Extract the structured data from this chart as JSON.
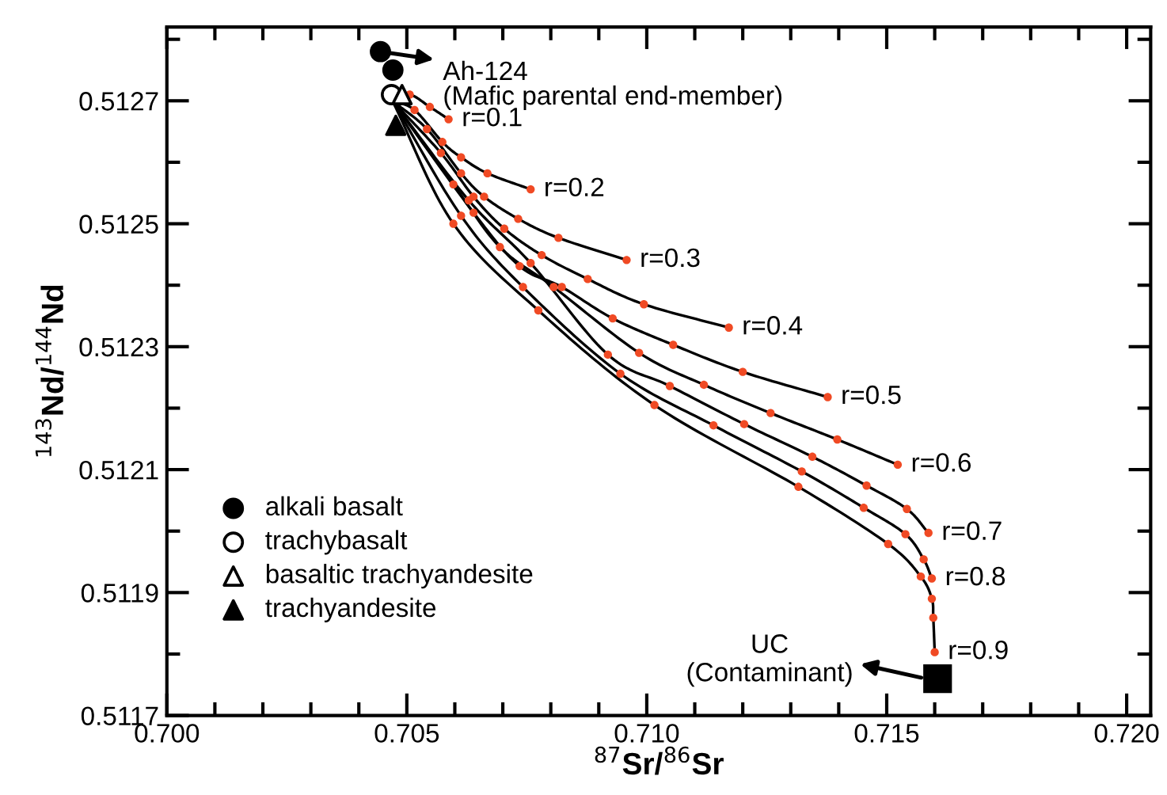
{
  "chart_data": {
    "type": "line",
    "xlabel": "$^{87}$Sr/$^{86}$Sr",
    "ylabel": "$^{143}$Nd/$^{144}$Nd",
    "xlim": [
      0.7,
      0.7205
    ],
    "ylim": [
      0.5117,
      0.51282
    ],
    "xticks": [
      {
        "value": 0.7,
        "label": "0.700"
      },
      {
        "value": 0.701,
        "label": null
      },
      {
        "value": 0.702,
        "label": null
      },
      {
        "value": 0.703,
        "label": null
      },
      {
        "value": 0.704,
        "label": null
      },
      {
        "value": 0.705,
        "label": "0.705"
      },
      {
        "value": 0.706,
        "label": null
      },
      {
        "value": 0.707,
        "label": null
      },
      {
        "value": 0.708,
        "label": null
      },
      {
        "value": 0.709,
        "label": null
      },
      {
        "value": 0.71,
        "label": "0.710"
      },
      {
        "value": 0.711,
        "label": null
      },
      {
        "value": 0.712,
        "label": null
      },
      {
        "value": 0.713,
        "label": null
      },
      {
        "value": 0.714,
        "label": null
      },
      {
        "value": 0.715,
        "label": "0.715"
      },
      {
        "value": 0.716,
        "label": null
      },
      {
        "value": 0.717,
        "label": null
      },
      {
        "value": 0.718,
        "label": null
      },
      {
        "value": 0.719,
        "label": null
      },
      {
        "value": 0.72,
        "label": "0.720"
      }
    ],
    "yticks": [
      0.5117,
      {
        "value": 0.5118,
        "label": null
      },
      0.5119,
      {
        "value": 0.512,
        "label": null
      },
      0.5121,
      {
        "value": 0.5122,
        "label": null
      },
      0.5123,
      {
        "value": 0.5124,
        "label": null
      },
      0.5125,
      {
        "value": 0.5126,
        "label": null
      },
      0.5127,
      {
        "value": 0.5128,
        "label": null
      }
    ],
    "grid": false,
    "legend": "bottom left",
    "series": [
      {
        "color": "#000000",
        "x": [
          0.7047,
          0.70506,
          0.70548,
          0.70587
        ],
        "values": [
          0.5127,
          0.51271,
          0.51269,
          0.51267
        ]
      },
      {
        "color": "#000000",
        "x": [
          0.7047,
          0.70516,
          0.70574,
          0.70613,
          0.70668,
          0.70758
        ],
        "values": [
          0.5127,
          0.512685,
          0.512633,
          0.512608,
          0.512582,
          0.512556
        ]
      },
      {
        "color": "#000000",
        "x": [
          0.7047,
          0.70542,
          0.70613,
          0.70661,
          0.70732,
          0.70816,
          0.70958
        ],
        "values": [
          0.5127,
          0.512654,
          0.512582,
          0.512544,
          0.512508,
          0.512477,
          0.512441
        ]
      },
      {
        "color": "#000000",
        "x": [
          0.7047,
          0.70571,
          0.70639,
          0.70703,
          0.70781,
          0.70877,
          0.70994,
          0.71171
        ],
        "values": [
          0.5127,
          0.512615,
          0.512544,
          0.512492,
          0.512449,
          0.51241,
          0.512369,
          0.512331
        ]
      },
      {
        "color": "#000000",
        "x": [
          0.7047,
          0.70639,
          0.70735,
          0.70823,
          0.70929,
          0.71055,
          0.712,
          0.71377
        ],
        "values": [
          0.5127,
          0.512518,
          0.512431,
          0.512397,
          0.512346,
          0.512303,
          0.512259,
          0.512218
        ]
      },
      {
        "color": "#000000",
        "x": [
          0.7047,
          0.70597,
          0.70694,
          0.70806,
          0.70984,
          0.71119,
          0.71258,
          0.71397,
          0.71523
        ],
        "values": [
          0.5127,
          0.512564,
          0.512462,
          0.512397,
          0.51229,
          0.512238,
          0.512192,
          0.512149,
          0.512108
        ]
      },
      {
        "color": "#000000",
        "x": [
          0.7047,
          0.70629,
          0.70758,
          0.70919,
          0.71048,
          0.71203,
          0.71345,
          0.71458,
          0.71542,
          0.71587
        ],
        "values": [
          0.5127,
          0.512538,
          0.512436,
          0.512287,
          0.512236,
          0.512174,
          0.512121,
          0.512074,
          0.512036,
          0.511997
        ]
      },
      {
        "color": "#000000",
        "x": [
          0.7047,
          0.70613,
          0.70742,
          0.70945,
          0.71139,
          0.71323,
          0.71452,
          0.71539,
          0.71577,
          0.71594
        ],
        "values": [
          0.5127,
          0.512513,
          0.512397,
          0.512256,
          0.512172,
          0.512097,
          0.512038,
          0.511995,
          0.511954,
          0.511923
        ]
      },
      {
        "color": "#000000",
        "x": [
          0.7047,
          0.70597,
          0.70774,
          0.71016,
          0.71316,
          0.71503,
          0.71571,
          0.71594,
          0.71597,
          0.716
        ],
        "values": [
          0.5127,
          0.5125,
          0.512359,
          0.512205,
          0.512072,
          0.511979,
          0.511926,
          0.51189,
          0.511859,
          0.511803
        ]
      },
      {
        "type": "scatter",
        "marker": "circle",
        "color": "#f04a24",
        "x": [
          0.70506,
          0.70548,
          0.70587,
          0.70516,
          0.70574,
          0.70613,
          0.70668,
          0.70758,
          0.70542,
          0.70613,
          0.70661,
          0.70732,
          0.70816,
          0.70958,
          0.70571,
          0.70639,
          0.70703,
          0.70781,
          0.70877,
          0.70994,
          0.71171,
          0.70639,
          0.70735,
          0.70823,
          0.70929,
          0.71055,
          0.712,
          0.71377,
          0.70597,
          0.70694,
          0.70806,
          0.70984,
          0.71119,
          0.71258,
          0.71397,
          0.71523,
          0.70629,
          0.70758,
          0.70919,
          0.71048,
          0.71203,
          0.71345,
          0.71458,
          0.71542,
          0.71587,
          0.70613,
          0.70742,
          0.70945,
          0.71139,
          0.71323,
          0.71452,
          0.71539,
          0.71577,
          0.71594,
          0.70597,
          0.70774,
          0.71016,
          0.71316,
          0.71503,
          0.71571,
          0.71594,
          0.71597,
          0.716
        ],
        "values": [
          0.51271,
          0.51269,
          0.51267,
          0.512685,
          0.512633,
          0.512608,
          0.512582,
          0.512556,
          0.512654,
          0.512582,
          0.512544,
          0.512508,
          0.512477,
          0.512441,
          0.512615,
          0.512544,
          0.512492,
          0.512449,
          0.51241,
          0.512369,
          0.512331,
          0.512518,
          0.512431,
          0.512397,
          0.512346,
          0.512303,
          0.512259,
          0.512218,
          0.512564,
          0.512462,
          0.512397,
          0.51229,
          0.512238,
          0.512192,
          0.512149,
          0.512108,
          0.512538,
          0.512436,
          0.512287,
          0.512236,
          0.512174,
          0.512121,
          0.512074,
          0.512036,
          0.511997,
          0.512513,
          0.512397,
          0.512256,
          0.512172,
          0.512097,
          0.512038,
          0.511995,
          0.511954,
          0.511923,
          0.5125,
          0.512359,
          0.512205,
          0.512072,
          0.511979,
          0.511926,
          0.51189,
          0.511859,
          0.511803
        ]
      },
      {
        "type": "scatter",
        "marker": "circle",
        "name": "alkali basalt",
        "color": "#000000",
        "x": [
          0.70445,
          0.70471
        ],
        "values": [
          0.51278,
          0.51275
        ]
      },
      {
        "type": "scatter",
        "marker": "circle",
        "name": "trachybasalt",
        "color": "#ffffff",
        "x": [
          0.70468
        ],
        "values": [
          0.51271
        ]
      },
      {
        "type": "scatter",
        "marker": "triangle",
        "name": "basaltic trachyandesite",
        "color": "#ffffff",
        "x": [
          0.7049
        ],
        "values": [
          0.51271
        ]
      },
      {
        "type": "scatter",
        "marker": "triangle",
        "name": "trachyandesite",
        "color": "#000000",
        "x": [
          0.70477
        ],
        "values": [
          0.51266
        ]
      },
      {
        "type": "scatter",
        "marker": "square",
        "color": "#000000",
        "x": [
          0.71606
        ],
        "values": [
          0.51176
        ]
      }
    ],
    "annotations": [
      {
        "text": "Ah-124\n(Mafic parental end-member)",
        "x": 0.70445,
        "y": 0.51278
      },
      "UC\n(Contaminant)",
      {
        "text": "r=0.1",
        "x": 0.70587,
        "y": 0.51267
      },
      {
        "text": "r=0.2",
        "x": 0.70758,
        "y": 0.512556
      },
      {
        "text": "r=0.3",
        "x": 0.70958,
        "y": 0.512441
      },
      {
        "text": "r=0.4",
        "x": 0.71171,
        "y": 0.512331
      },
      {
        "text": "r=0.5",
        "x": 0.71377,
        "y": 0.512218
      },
      {
        "text": "r=0.6",
        "x": 0.71523,
        "y": 0.512108
      },
      {
        "text": "r=0.7",
        "x": 0.71587,
        "y": 0.511997
      },
      {
        "text": "r=0.8",
        "x": 0.71594,
        "y": 0.511923
      },
      {
        "text": "r=0.9",
        "x": 0.716,
        "y": 0.511803
      }
    ]
  }
}
